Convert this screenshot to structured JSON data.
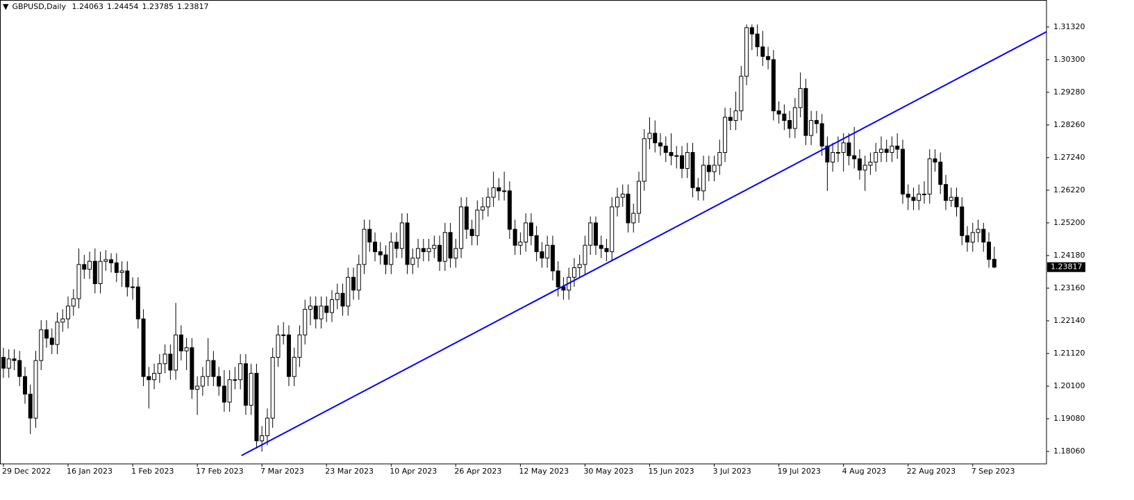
{
  "chart_data": {
    "type": "candlestick",
    "title": "GBPUSD,Daily",
    "categories": [
      "29 Dec 2022",
      null,
      null,
      null,
      null,
      null,
      null,
      null,
      null,
      null,
      null,
      null,
      "16 Jan 2023",
      null,
      null,
      null,
      null,
      null,
      null,
      null,
      null,
      null,
      null,
      null,
      "1 Feb 2023",
      null,
      null,
      null,
      null,
      null,
      null,
      null,
      null,
      null,
      null,
      null,
      "17 Feb 2023",
      null,
      null,
      null,
      null,
      null,
      null,
      null,
      null,
      null,
      null,
      null,
      "7 Mar 2023",
      null,
      null,
      null,
      null,
      null,
      null,
      null,
      null,
      null,
      null,
      null,
      "23 Mar 2023",
      null,
      null,
      null,
      null,
      null,
      null,
      null,
      null,
      null,
      null,
      null,
      "10 Apr 2023",
      null,
      null,
      null,
      null,
      null,
      null,
      null,
      null,
      null,
      null,
      null,
      "26 Apr 2023",
      null,
      null,
      null,
      null,
      null,
      null,
      null,
      null,
      null,
      null,
      null,
      "12 May 2023",
      null,
      null,
      null,
      null,
      null,
      null,
      null,
      null,
      null,
      null,
      null,
      "30 May 2023",
      null,
      null,
      null,
      null,
      null,
      null,
      null,
      null,
      null,
      null,
      null,
      "15 Jun 2023",
      null,
      null,
      null,
      null,
      null,
      null,
      null,
      null,
      null,
      null,
      null,
      "3 Jul 2023",
      null,
      null,
      null,
      null,
      null,
      null,
      null,
      null,
      null,
      null,
      null,
      "19 Jul 2023",
      null,
      null,
      null,
      null,
      null,
      null,
      null,
      null,
      null,
      null,
      null,
      "4 Aug 2023",
      null,
      null,
      null,
      null,
      null,
      null,
      null,
      null,
      null,
      null,
      null,
      "22 Aug 2023",
      null,
      null,
      null,
      null,
      null,
      null,
      null,
      null,
      null,
      null,
      null,
      "7 Sep 2023",
      null,
      null,
      null,
      null
    ],
    "candles": [
      [
        1.21,
        1.213,
        1.2036,
        1.2066
      ],
      [
        1.2066,
        1.2125,
        1.2036,
        1.2095
      ],
      [
        1.2095,
        1.2125,
        1.206,
        1.209
      ],
      [
        1.209,
        1.212,
        1.201,
        1.204
      ],
      [
        1.204,
        1.207,
        1.1955,
        1.1985
      ],
      [
        1.1985,
        1.2015,
        1.186,
        1.191
      ],
      [
        1.191,
        1.212,
        1.188,
        1.209
      ],
      [
        1.209,
        1.2216,
        1.206,
        1.2186
      ],
      [
        1.2186,
        1.2216,
        1.213,
        1.216
      ],
      [
        1.216,
        1.219,
        1.211,
        1.214
      ],
      [
        1.214,
        1.224,
        1.211,
        1.221
      ],
      [
        1.221,
        1.225,
        1.218,
        1.222
      ],
      [
        1.222,
        1.229,
        1.219,
        1.226
      ],
      [
        1.226,
        1.2313,
        1.223,
        1.2283
      ],
      [
        1.2283,
        1.244,
        1.2253,
        1.239
      ],
      [
        1.239,
        1.242,
        1.2345,
        1.2375
      ],
      [
        1.2375,
        1.243,
        1.2345,
        1.24
      ],
      [
        1.24,
        1.244,
        1.23,
        1.233
      ],
      [
        1.233,
        1.243,
        1.23,
        1.24
      ],
      [
        1.24,
        1.2435,
        1.237,
        1.2405
      ],
      [
        1.2405,
        1.2425,
        1.2365,
        1.2395
      ],
      [
        1.2395,
        1.2425,
        1.2335,
        1.2365
      ],
      [
        1.2365,
        1.24,
        1.232,
        1.237
      ],
      [
        1.237,
        1.24,
        1.229,
        1.232
      ],
      [
        1.232,
        1.235,
        1.228,
        1.232
      ],
      [
        1.232,
        1.235,
        1.219,
        1.222
      ],
      [
        1.222,
        1.225,
        1.201,
        1.204
      ],
      [
        1.204,
        1.207,
        1.194,
        1.203
      ],
      [
        1.203,
        1.208,
        1.2,
        1.205
      ],
      [
        1.205,
        1.211,
        1.202,
        1.208
      ],
      [
        1.208,
        1.214,
        1.205,
        1.211
      ],
      [
        1.211,
        1.214,
        1.203,
        1.206
      ],
      [
        1.206,
        1.227,
        1.203,
        1.217
      ],
      [
        1.217,
        1.22,
        1.209,
        1.212
      ],
      [
        1.212,
        1.216,
        1.206,
        1.213
      ],
      [
        1.213,
        1.216,
        1.197,
        1.2
      ],
      [
        1.2,
        1.204,
        1.192,
        1.201
      ],
      [
        1.201,
        1.207,
        1.198,
        1.204
      ],
      [
        1.204,
        1.216,
        1.201,
        1.209
      ],
      [
        1.209,
        1.212,
        1.201,
        1.204
      ],
      [
        1.204,
        1.207,
        1.198,
        1.201
      ],
      [
        1.201,
        1.206,
        1.193,
        1.196
      ],
      [
        1.196,
        1.206,
        1.193,
        1.203
      ],
      [
        1.203,
        1.207,
        1.2,
        1.203
      ],
      [
        1.203,
        1.211,
        1.2,
        1.208
      ],
      [
        1.208,
        1.211,
        1.192,
        1.195
      ],
      [
        1.195,
        1.208,
        1.192,
        1.205
      ],
      [
        1.205,
        1.208,
        1.1815,
        1.1839
      ],
      [
        1.1839,
        1.1885,
        1.1805,
        1.1855
      ],
      [
        1.1855,
        1.194,
        1.1825,
        1.191
      ],
      [
        1.191,
        1.213,
        1.188,
        1.21
      ],
      [
        1.21,
        1.22,
        1.207,
        1.217
      ],
      [
        1.217,
        1.221,
        1.214,
        1.217
      ],
      [
        1.217,
        1.22,
        1.201,
        1.204
      ],
      [
        1.204,
        1.213,
        1.201,
        1.21
      ],
      [
        1.21,
        1.22,
        1.207,
        1.217
      ],
      [
        1.217,
        1.228,
        1.214,
        1.225
      ],
      [
        1.225,
        1.229,
        1.22,
        1.226
      ],
      [
        1.226,
        1.229,
        1.219,
        1.222
      ],
      [
        1.222,
        1.229,
        1.219,
        1.226
      ],
      [
        1.226,
        1.229,
        1.221,
        1.224
      ],
      [
        1.224,
        1.231,
        1.221,
        1.228
      ],
      [
        1.228,
        1.233,
        1.225,
        1.23
      ],
      [
        1.23,
        1.233,
        1.223,
        1.226
      ],
      [
        1.226,
        1.238,
        1.223,
        1.235
      ],
      [
        1.235,
        1.238,
        1.228,
        1.231
      ],
      [
        1.231,
        1.242,
        1.228,
        1.239
      ],
      [
        1.239,
        1.253,
        1.236,
        1.25
      ],
      [
        1.25,
        1.253,
        1.243,
        1.246
      ],
      [
        1.246,
        1.249,
        1.24,
        1.243
      ],
      [
        1.243,
        1.246,
        1.239,
        1.242
      ],
      [
        1.242,
        1.245,
        1.236,
        1.239
      ],
      [
        1.239,
        1.249,
        1.236,
        1.246
      ],
      [
        1.246,
        1.249,
        1.241,
        1.244
      ],
      [
        1.244,
        1.255,
        1.241,
        1.252
      ],
      [
        1.252,
        1.255,
        1.236,
        1.239
      ],
      [
        1.239,
        1.244,
        1.236,
        1.241
      ],
      [
        1.241,
        1.247,
        1.238,
        1.244
      ],
      [
        1.244,
        1.247,
        1.24,
        1.243
      ],
      [
        1.243,
        1.247,
        1.24,
        1.244
      ],
      [
        1.244,
        1.248,
        1.241,
        1.245
      ],
      [
        1.245,
        1.248,
        1.237,
        1.24
      ],
      [
        1.24,
        1.252,
        1.237,
        1.249
      ],
      [
        1.249,
        1.252,
        1.238,
        1.241
      ],
      [
        1.241,
        1.247,
        1.238,
        1.244
      ],
      [
        1.244,
        1.26,
        1.241,
        1.257
      ],
      [
        1.257,
        1.26,
        1.247,
        1.25
      ],
      [
        1.25,
        1.253,
        1.245,
        1.248
      ],
      [
        1.248,
        1.259,
        1.245,
        1.256
      ],
      [
        1.256,
        1.26,
        1.253,
        1.257
      ],
      [
        1.257,
        1.263,
        1.254,
        1.26
      ],
      [
        1.26,
        1.268,
        1.257,
        1.263
      ],
      [
        1.263,
        1.266,
        1.259,
        1.262
      ],
      [
        1.262,
        1.268,
        1.259,
        1.262
      ],
      [
        1.262,
        1.265,
        1.247,
        1.25
      ],
      [
        1.25,
        1.253,
        1.242,
        1.245
      ],
      [
        1.245,
        1.249,
        1.242,
        1.246
      ],
      [
        1.246,
        1.255,
        1.243,
        1.252
      ],
      [
        1.252,
        1.255,
        1.245,
        1.248
      ],
      [
        1.248,
        1.251,
        1.24,
        1.243
      ],
      [
        1.243,
        1.246,
        1.238,
        1.241
      ],
      [
        1.241,
        1.248,
        1.238,
        1.245
      ],
      [
        1.245,
        1.248,
        1.234,
        1.237
      ],
      [
        1.237,
        1.24,
        1.229,
        1.232
      ],
      [
        1.232,
        1.235,
        1.228,
        1.231
      ],
      [
        1.231,
        1.238,
        1.228,
        1.235
      ],
      [
        1.235,
        1.241,
        1.232,
        1.238
      ],
      [
        1.238,
        1.242,
        1.235,
        1.239
      ],
      [
        1.239,
        1.248,
        1.236,
        1.245
      ],
      [
        1.245,
        1.254,
        1.242,
        1.252
      ],
      [
        1.252,
        1.254,
        1.242,
        1.245
      ],
      [
        1.245,
        1.248,
        1.241,
        1.244
      ],
      [
        1.244,
        1.247,
        1.24,
        1.243
      ],
      [
        1.243,
        1.26,
        1.24,
        1.257
      ],
      [
        1.257,
        1.263,
        1.254,
        1.26
      ],
      [
        1.26,
        1.264,
        1.257,
        1.261
      ],
      [
        1.261,
        1.264,
        1.249,
        1.252
      ],
      [
        1.252,
        1.258,
        1.249,
        1.255
      ],
      [
        1.255,
        1.268,
        1.252,
        1.265
      ],
      [
        1.265,
        1.2813,
        1.262,
        1.2783
      ],
      [
        1.2783,
        1.285,
        1.275,
        1.28
      ],
      [
        1.28,
        1.284,
        1.274,
        1.277
      ],
      [
        1.277,
        1.28,
        1.273,
        1.276
      ],
      [
        1.276,
        1.279,
        1.271,
        1.274
      ],
      [
        1.274,
        1.28,
        1.27,
        1.273
      ],
      [
        1.273,
        1.276,
        1.269,
        1.273
      ],
      [
        1.273,
        1.276,
        1.266,
        1.269
      ],
      [
        1.269,
        1.277,
        1.266,
        1.274
      ],
      [
        1.274,
        1.277,
        1.26,
        1.263
      ],
      [
        1.263,
        1.266,
        1.259,
        1.262
      ],
      [
        1.262,
        1.273,
        1.259,
        1.27
      ],
      [
        1.27,
        1.273,
        1.265,
        1.268
      ],
      [
        1.268,
        1.273,
        1.265,
        1.27
      ],
      [
        1.27,
        1.278,
        1.267,
        1.274
      ],
      [
        1.274,
        1.288,
        1.271,
        1.285
      ],
      [
        1.285,
        1.288,
        1.281,
        1.284
      ],
      [
        1.284,
        1.293,
        1.281,
        1.287
      ],
      [
        1.287,
        1.301,
        1.284,
        1.2978
      ],
      [
        1.2978,
        1.314,
        1.295,
        1.313
      ],
      [
        1.313,
        1.314,
        1.306,
        1.311
      ],
      [
        1.311,
        1.314,
        1.304,
        1.307
      ],
      [
        1.307,
        1.312,
        1.301,
        1.304
      ],
      [
        1.304,
        1.307,
        1.3,
        1.303
      ],
      [
        1.303,
        1.306,
        1.284,
        1.287
      ],
      [
        1.287,
        1.29,
        1.283,
        1.286
      ],
      [
        1.286,
        1.289,
        1.281,
        1.284
      ],
      [
        1.284,
        1.287,
        1.2785,
        1.2815
      ],
      [
        1.2815,
        1.291,
        1.2785,
        1.288
      ],
      [
        1.288,
        1.299,
        1.285,
        1.294
      ],
      [
        1.294,
        1.297,
        1.2763,
        1.2793
      ],
      [
        1.2793,
        1.287,
        1.2763,
        1.284
      ],
      [
        1.284,
        1.287,
        1.28,
        1.283
      ],
      [
        1.283,
        1.286,
        1.273,
        1.276
      ],
      [
        1.276,
        1.279,
        1.262,
        1.271
      ],
      [
        1.271,
        1.277,
        1.268,
        1.274
      ],
      [
        1.274,
        1.279,
        1.271,
        1.274
      ],
      [
        1.274,
        1.28,
        1.268,
        1.277
      ],
      [
        1.277,
        1.28,
        1.27,
        1.273
      ],
      [
        1.273,
        1.282,
        1.269,
        1.272
      ],
      [
        1.272,
        1.275,
        1.2655,
        1.2685
      ],
      [
        1.2685,
        1.273,
        1.262,
        1.27
      ],
      [
        1.27,
        1.274,
        1.267,
        1.271
      ],
      [
        1.271,
        1.277,
        1.268,
        1.274
      ],
      [
        1.274,
        1.279,
        1.271,
        1.275
      ],
      [
        1.275,
        1.278,
        1.271,
        1.274
      ],
      [
        1.274,
        1.279,
        1.271,
        1.276
      ],
      [
        1.276,
        1.28,
        1.272,
        1.275
      ],
      [
        1.275,
        1.278,
        1.258,
        1.261
      ],
      [
        1.261,
        1.264,
        1.256,
        1.26
      ],
      [
        1.26,
        1.263,
        1.256,
        1.259
      ],
      [
        1.259,
        1.264,
        1.256,
        1.261
      ],
      [
        1.261,
        1.265,
        1.258,
        1.261
      ],
      [
        1.261,
        1.275,
        1.258,
        1.272
      ],
      [
        1.272,
        1.275,
        1.268,
        1.271
      ],
      [
        1.271,
        1.274,
        1.261,
        1.264
      ],
      [
        1.264,
        1.267,
        1.256,
        1.259
      ],
      [
        1.259,
        1.263,
        1.257,
        1.26
      ],
      [
        1.26,
        1.263,
        1.254,
        1.257
      ],
      [
        1.257,
        1.26,
        1.245,
        1.248
      ],
      [
        1.248,
        1.251,
        1.243,
        1.246
      ],
      [
        1.246,
        1.252,
        1.243,
        1.249
      ],
      [
        1.249,
        1.253,
        1.246,
        1.25
      ],
      [
        1.25,
        1.252,
        1.243,
        1.246
      ],
      [
        1.246,
        1.249,
        1.238,
        1.2406
      ],
      [
        1.24063,
        1.24454,
        1.23785,
        1.23817
      ]
    ],
    "up_color": "#ffffff",
    "down_color": "#000000",
    "wick_color": "#000000",
    "trendline": {
      "x": [
        44.2,
        193.7
      ],
      "y": [
        1.1793,
        1.3117
      ],
      "color": "#0000ff"
    },
    "xlim": [
      -0.64,
      193.7
    ],
    "ylim": [
      1.1767,
      1.3212
    ],
    "yticks": [
      {
        "value": 1.1806,
        "label": "1.18060"
      },
      {
        "value": 1.1908,
        "label": "1.19080"
      },
      {
        "value": 1.201,
        "label": "1.20100"
      },
      {
        "value": 1.2112,
        "label": "1.21120"
      },
      {
        "value": 1.2214,
        "label": "1.22140"
      },
      {
        "value": 1.2316,
        "label": "1.23160"
      },
      {
        "value": 1.2418,
        "label": "1.24180"
      },
      {
        "value": 1.252,
        "label": "1.25200"
      },
      {
        "value": 1.2622,
        "label": "1.26220"
      },
      {
        "value": 1.2724,
        "label": "1.27240"
      },
      {
        "value": 1.2826,
        "label": "1.28260"
      },
      {
        "value": 1.2928,
        "label": "1.29280"
      },
      {
        "value": 1.303,
        "label": "1.30300"
      },
      {
        "value": 1.3132,
        "label": "1.31320"
      }
    ],
    "grid": false
  }
}
